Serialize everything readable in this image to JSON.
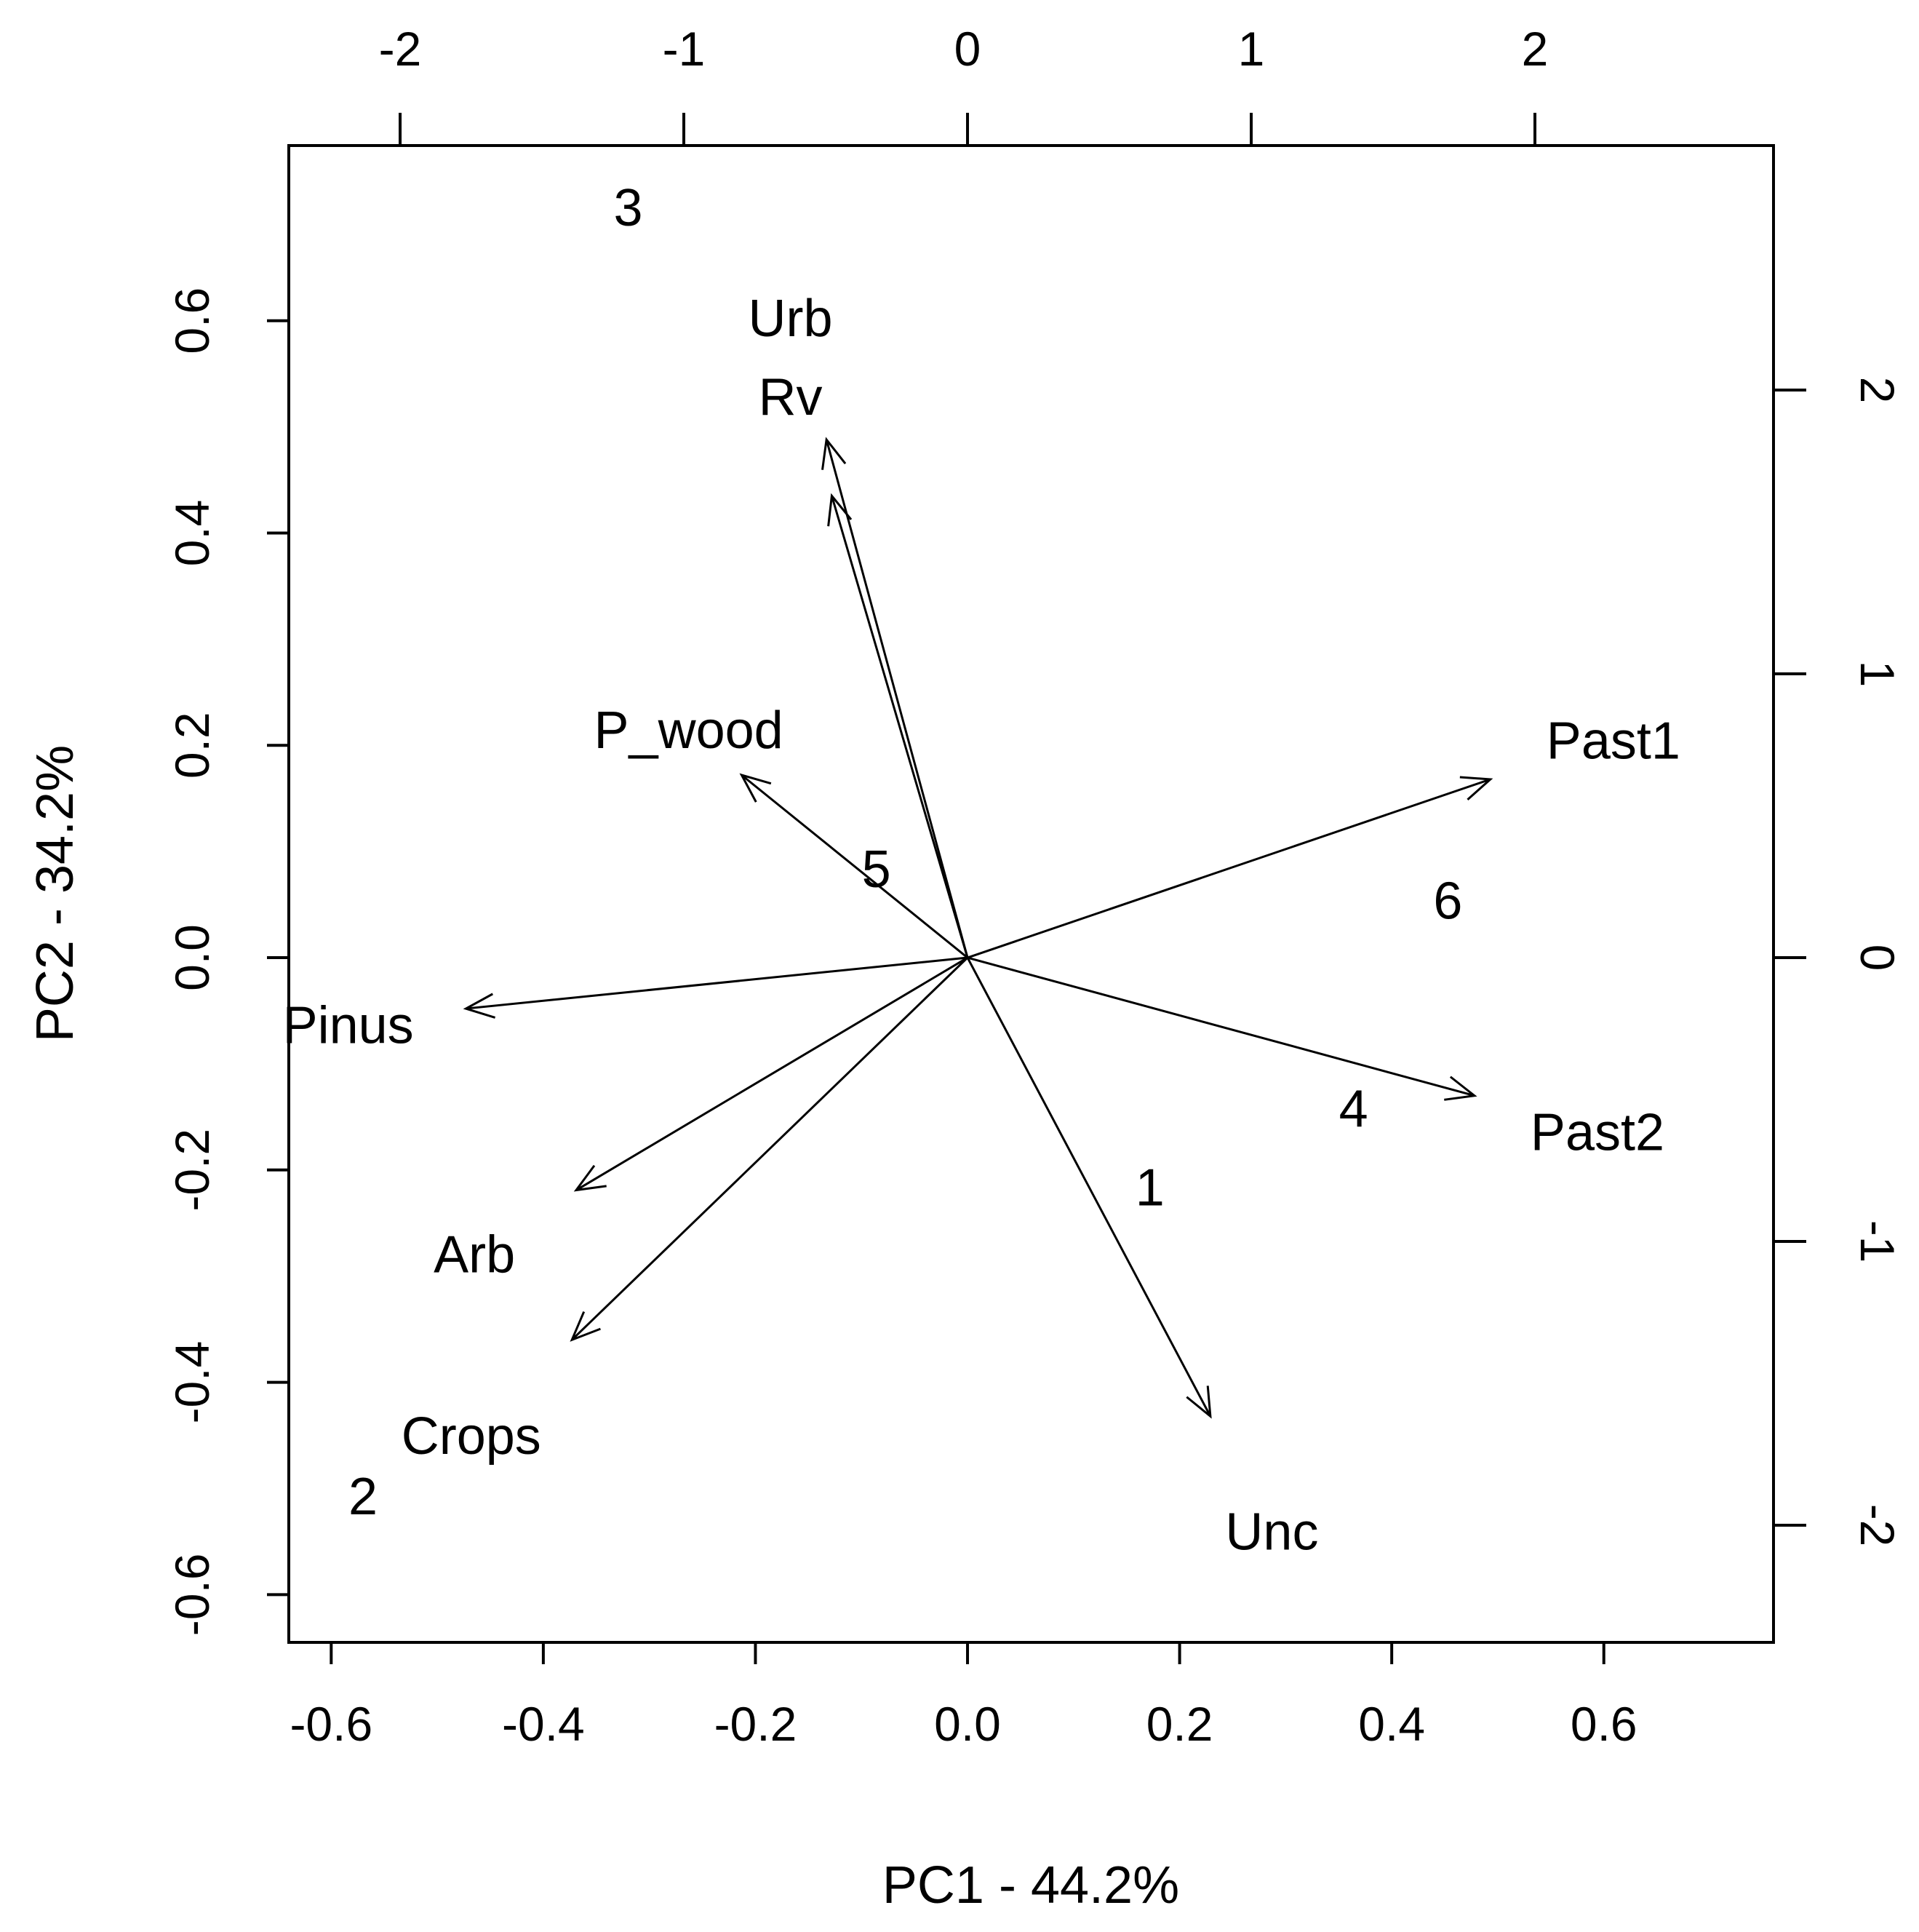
{
  "chart_data": {
    "type": "scatter",
    "subtype": "biplot",
    "title": "",
    "xlabel": "PC1 - 44.2%",
    "ylabel": "PC2 - 34.2%",
    "xlim": [
      -0.64,
      0.76
    ],
    "ylim": [
      -0.645,
      0.765
    ],
    "bottom_axis_ticks": [
      "-0.6",
      "-0.4",
      "-0.2",
      "0.0",
      "0.2",
      "0.4",
      "0.6"
    ],
    "left_axis_ticks": [
      "-0.6",
      "-0.4",
      "-0.2",
      "0.0",
      "0.2",
      "0.4",
      "0.6"
    ],
    "top_axis_ticks": [
      "-2",
      "-1",
      "0",
      "1",
      "2"
    ],
    "right_axis_ticks": [
      "-2",
      "-1",
      "0",
      "1",
      "2"
    ],
    "observations": [
      {
        "label": "1",
        "x": 0.172,
        "y": -0.217
      },
      {
        "label": "2",
        "x": -0.57,
        "y": -0.508
      },
      {
        "label": "3",
        "x": -0.32,
        "y": 0.706
      },
      {
        "label": "4",
        "x": 0.364,
        "y": -0.143
      },
      {
        "label": "5",
        "x": -0.086,
        "y": 0.083
      },
      {
        "label": "6",
        "x": 0.453,
        "y": 0.053
      }
    ],
    "variables": [
      {
        "label": "Urb",
        "x": -0.133,
        "y": 0.488,
        "label_x": -0.167,
        "label_y": 0.602
      },
      {
        "label": "Rv",
        "x": -0.128,
        "y": 0.435,
        "label_x": -0.167,
        "label_y": 0.528
      },
      {
        "label": "P_wood",
        "x": -0.213,
        "y": 0.172,
        "label_x": -0.263,
        "label_y": 0.214
      },
      {
        "label": "Past1",
        "x": 0.493,
        "y": 0.168,
        "label_x": 0.609,
        "label_y": 0.204
      },
      {
        "label": "Pinus",
        "x": -0.473,
        "y": -0.048,
        "label_x": -0.584,
        "label_y": -0.064
      },
      {
        "label": "Past2",
        "x": 0.478,
        "y": -0.13,
        "label_x": 0.594,
        "label_y": -0.165
      },
      {
        "label": "Arb",
        "x": -0.369,
        "y": -0.219,
        "label_x": -0.465,
        "label_y": -0.28
      },
      {
        "label": "Crops",
        "x": -0.373,
        "y": -0.36,
        "label_x": -0.468,
        "label_y": -0.451
      },
      {
        "label": "Unc",
        "x": 0.229,
        "y": -0.432,
        "label_x": 0.287,
        "label_y": -0.541
      }
    ]
  }
}
